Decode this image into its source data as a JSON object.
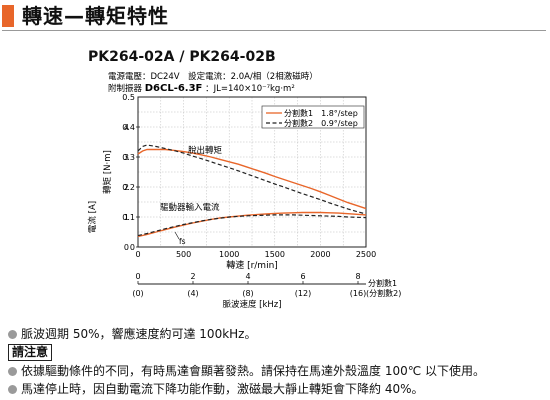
{
  "header": {
    "title": "轉速—轉矩特性",
    "accent_color": "#e8662a"
  },
  "model": {
    "title": "PK264-02A / PK264-02B"
  },
  "conditions": {
    "line1": "電源電壓：DC24V　設定電流：2.0A/相（2相激磁時）",
    "line2_label": "附制振器",
    "line2_model": "D6CL-6.3F",
    "line2_inertia": "：JL=140×10⁻⁷kg·m²"
  },
  "legend": {
    "item1": "分割數1　1.8°/step",
    "item2": "分割數2　0.9°/step"
  },
  "annotations": {
    "pullout": "脫出轉矩",
    "current": "驅動器輸入電流",
    "fs": "fs"
  },
  "axis_labels": {
    "torque": "轉矩 [N·m]",
    "current": "電流 [A]",
    "speed": "轉速 [r/min]",
    "frequency": "脈波速度 [kHz]",
    "div1": "分割數1",
    "div2": "(分割數2)"
  },
  "chart_data": {
    "type": "line",
    "xlabel": "轉速 [r/min]",
    "ylabel": "轉矩 [N·m]",
    "xlim": [
      0,
      2500
    ],
    "ylim": [
      0,
      0.5
    ],
    "x_ticks": [
      0,
      500,
      1000,
      1500,
      2000,
      2500
    ],
    "y_ticks": [
      0,
      0.1,
      0.2,
      0.3,
      0.4,
      0.5
    ],
    "current_ticks": [
      0,
      1,
      2,
      3,
      4
    ],
    "grid": true,
    "legend_position": "top-right",
    "series": [
      {
        "name": "分割數1　1.8°/step",
        "style": "solid",
        "color": "#e8662a",
        "x": [
          0,
          50,
          100,
          200,
          300,
          400,
          500,
          600,
          700,
          800,
          900,
          1000,
          1100,
          1200,
          1300,
          1400,
          1500,
          1600,
          1700,
          1800,
          1900,
          2000,
          2100,
          2200,
          2300,
          2400,
          2500
        ],
        "y": [
          0.31,
          0.32,
          0.325,
          0.325,
          0.325,
          0.322,
          0.318,
          0.313,
          0.307,
          0.3,
          0.292,
          0.284,
          0.276,
          0.266,
          0.256,
          0.246,
          0.235,
          0.225,
          0.215,
          0.205,
          0.195,
          0.184,
          0.172,
          0.16,
          0.148,
          0.138,
          0.128
        ]
      },
      {
        "name": "分割數2　0.9°/step",
        "style": "dashed",
        "color": "#222222",
        "x": [
          0,
          50,
          100,
          200,
          300,
          400,
          500,
          600,
          700,
          800,
          900,
          1000,
          1100,
          1200,
          1300,
          1400,
          1500,
          1600,
          1700,
          1800,
          1900,
          2000,
          2100,
          2200,
          2300,
          2400,
          2500
        ],
        "y": [
          0.32,
          0.335,
          0.34,
          0.335,
          0.328,
          0.321,
          0.313,
          0.303,
          0.294,
          0.284,
          0.274,
          0.264,
          0.254,
          0.243,
          0.232,
          0.221,
          0.21,
          0.2,
          0.189,
          0.178,
          0.168,
          0.158,
          0.147,
          0.137,
          0.127,
          0.118,
          0.11
        ]
      },
      {
        "name": "驅動器輸入電流 分割數1",
        "style": "solid",
        "color": "#e8662a",
        "axis": "current",
        "x": [
          0,
          100,
          200,
          300,
          400,
          500,
          600,
          700,
          800,
          900,
          1000,
          1100,
          1200,
          1300,
          1400,
          1500,
          1600,
          1700,
          1800,
          1900,
          2000,
          2100,
          2200,
          2300,
          2400,
          2500
        ],
        "y": [
          0.35,
          0.42,
          0.5,
          0.58,
          0.66,
          0.73,
          0.8,
          0.86,
          0.92,
          0.97,
          1.0,
          1.03,
          1.06,
          1.08,
          1.1,
          1.12,
          1.13,
          1.14,
          1.15,
          1.15,
          1.15,
          1.14,
          1.13,
          1.11,
          1.09,
          1.07
        ]
      },
      {
        "name": "驅動器輸入電流 分割數2",
        "style": "dashed",
        "color": "#222222",
        "axis": "current",
        "x": [
          0,
          100,
          200,
          300,
          400,
          500,
          600,
          700,
          800,
          900,
          1000,
          1100,
          1200,
          1300,
          1400,
          1500,
          1600,
          1700,
          1800,
          1900,
          2000,
          2100,
          2200,
          2300,
          2400,
          2500
        ],
        "y": [
          0.38,
          0.45,
          0.53,
          0.61,
          0.68,
          0.75,
          0.81,
          0.87,
          0.92,
          0.96,
          1.0,
          1.02,
          1.04,
          1.05,
          1.06,
          1.07,
          1.07,
          1.07,
          1.06,
          1.05,
          1.04,
          1.03,
          1.02,
          1.0,
          0.99,
          0.98
        ]
      }
    ],
    "frequency_axis": {
      "ticks_div1": [
        "0",
        "2",
        "4",
        "6",
        "8"
      ],
      "ticks_div2": [
        "(0)",
        "(4)",
        "(8)",
        "(12)",
        "(16)"
      ]
    }
  },
  "notes": {
    "n1": "脈波週期 50%，響應速度約可達 100kHz。",
    "caution": "請注意",
    "n2": "依據驅動條件的不同，有時馬達會顯著發熱。請保持在馬達外殼溫度 100℃ 以下使用。",
    "n3": "馬達停止時，因自動電流下降功能作動，激磁最大靜止轉矩會下降約 40%。"
  }
}
